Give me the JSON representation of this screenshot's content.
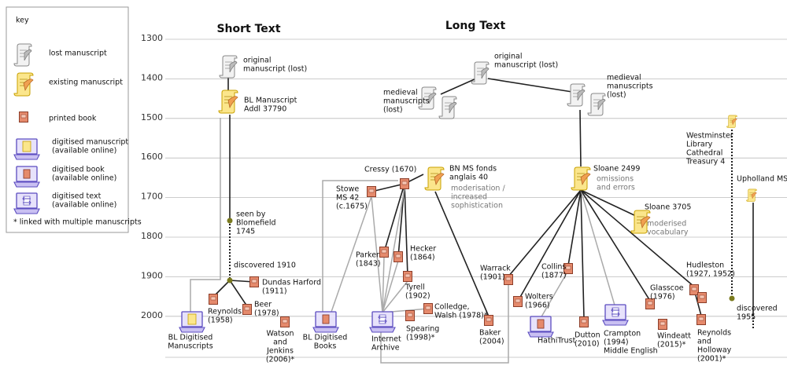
{
  "key": {
    "title": "key",
    "items": [
      {
        "label": [
          "lost manuscript"
        ]
      },
      {
        "label": [
          "existing manuscript"
        ]
      },
      {
        "label": [
          "printed book"
        ]
      },
      {
        "label": [
          "digitised manuscript",
          "(available online)"
        ]
      },
      {
        "label": [
          "digitised book",
          "(available online)"
        ]
      },
      {
        "label": [
          "digitised text",
          "(available online)"
        ]
      }
    ],
    "note": "*  linked with multiple manuscripts"
  },
  "headings": {
    "short": "Short Text",
    "long": "Long Text"
  },
  "timeline": {
    "years": [
      1300,
      1400,
      1500,
      1600,
      1700,
      1800,
      1900,
      2000
    ]
  },
  "nodes": [
    {
      "label": [
        "original",
        "manuscript (lost)"
      ]
    },
    {
      "label": [
        "BL Manuscript",
        "Addl 37790"
      ]
    },
    {
      "label": [
        "seen by",
        "Blomefield",
        "1745"
      ]
    },
    {
      "label": [
        "discovered 1910"
      ]
    },
    {
      "label": [
        "Dundas Harford",
        "(1911)"
      ]
    },
    {
      "label": [
        "Reynolds",
        "(1958)"
      ]
    },
    {
      "label": [
        "Beer",
        "(1978)"
      ]
    },
    {
      "label": [
        "Watson",
        "and",
        "Jenkins",
        "(2006)*"
      ]
    },
    {
      "label": [
        "BL Digitised",
        "Manuscripts"
      ]
    },
    {
      "label": [
        "BL Digitised",
        "Books"
      ]
    },
    {
      "label": [
        "original",
        "manuscript (lost)"
      ]
    },
    {
      "label": [
        "medieval",
        "manuscripts",
        "(lost)"
      ]
    },
    {
      "label": [
        "medieval",
        "manuscripts",
        "(lost)"
      ]
    },
    {
      "label": [
        "Cressy (1670)"
      ]
    },
    {
      "label": [
        "BN MS fonds",
        "anglais 40"
      ],
      "note": [
        "moderisation /",
        "increased",
        "sophistication"
      ]
    },
    {
      "label": [
        "Stowe",
        "MS 42",
        "(c.1675)"
      ]
    },
    {
      "label": [
        "Parker",
        "(1843)"
      ]
    },
    {
      "label": [
        "Hecker",
        "(1864)"
      ]
    },
    {
      "label": [
        "Tyrell",
        "(1902)"
      ]
    },
    {
      "label": [
        "Colledge,",
        "Walsh (1978)*"
      ]
    },
    {
      "label": [
        "Spearing",
        "(1998)*"
      ]
    },
    {
      "label": [
        "Internet",
        "Archive"
      ]
    },
    {
      "label": [
        "Baker",
        "(2004)"
      ]
    },
    {
      "label": [
        "Sloane 2499"
      ],
      "note": [
        "omissions",
        "and errors"
      ]
    },
    {
      "label": [
        "Sloane 3705"
      ],
      "note": [
        "moderised",
        "vocabulary"
      ]
    },
    {
      "label": [
        "Warrack",
        "(1901)"
      ]
    },
    {
      "label": [
        "Collins",
        "(1877)"
      ]
    },
    {
      "label": [
        "Wolters",
        "(1966)"
      ]
    },
    {
      "label": [
        "HathiTrust"
      ]
    },
    {
      "label": [
        "Dutton",
        "(2010)"
      ]
    },
    {
      "label": [
        "Crampton",
        "(1994)",
        "Middle English"
      ]
    },
    {
      "label": [
        "Glasscoe",
        "(1976)"
      ]
    },
    {
      "label": [
        "Windeatt",
        "(2015)*"
      ]
    },
    {
      "label": [
        "Hudleston",
        "(1927, 1952)"
      ]
    },
    {
      "label": [
        "Reynolds",
        "and",
        "Holloway",
        "(2001)*"
      ]
    },
    {
      "label": [
        "Westminster",
        "Library",
        "Cathedral",
        "Treasury 4"
      ]
    },
    {
      "label": [
        "discovered",
        "1955"
      ]
    },
    {
      "label": [
        "Upholland MS"
      ]
    }
  ]
}
